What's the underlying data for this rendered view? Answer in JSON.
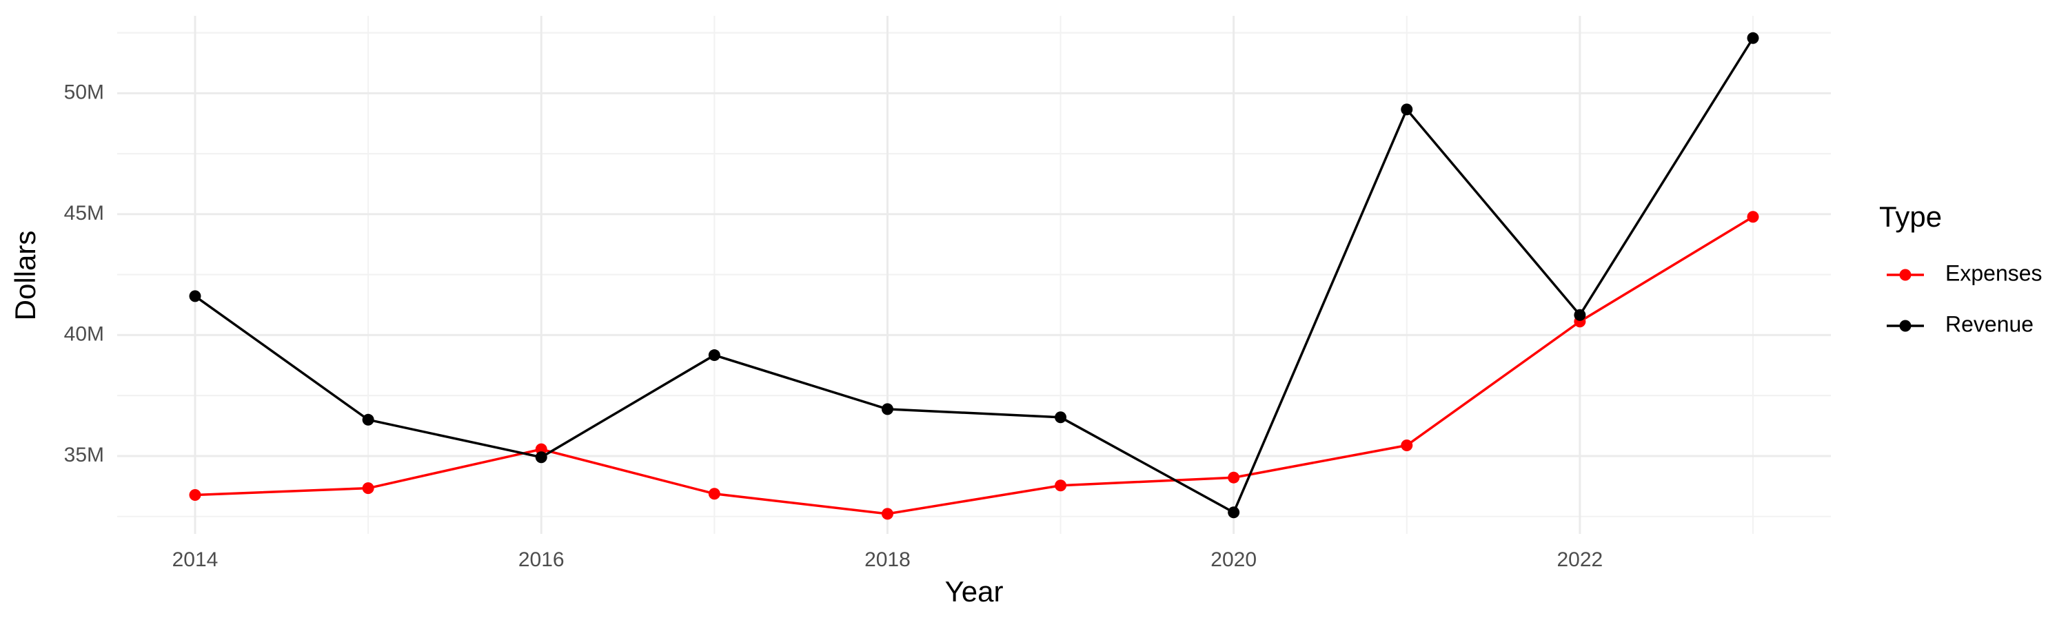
{
  "chart_data": {
    "type": "line",
    "x_label": "Year",
    "y_label": "Dollars",
    "x": [
      2014,
      2015,
      2016,
      2017,
      2018,
      2019,
      2020,
      2021,
      2022,
      2023
    ],
    "series": [
      {
        "name": "Expenses",
        "color": "#ff0000",
        "values": [
          33390000,
          33670000,
          35280000,
          33440000,
          32610000,
          33780000,
          34110000,
          35440000,
          40560000,
          44890000
        ]
      },
      {
        "name": "Revenue",
        "color": "#000000",
        "values": [
          41610000,
          36500000,
          34950000,
          39170000,
          36940000,
          36600000,
          32670000,
          49330000,
          40830000,
          52280000
        ]
      }
    ],
    "legend_title": "Type",
    "legend": "right",
    "xlim": [
      2013.55,
      2023.45
    ],
    "xticks": [
      2014,
      2016,
      2018,
      2020,
      2022
    ],
    "ylim": [
      31780000,
      53200000
    ],
    "yticks": [
      {
        "value": 35000000,
        "label": "35M"
      },
      {
        "value": 40000000,
        "label": "40M"
      },
      {
        "value": 45000000,
        "label": "45M"
      },
      {
        "value": 50000000,
        "label": "50M"
      }
    ],
    "grid": true
  }
}
